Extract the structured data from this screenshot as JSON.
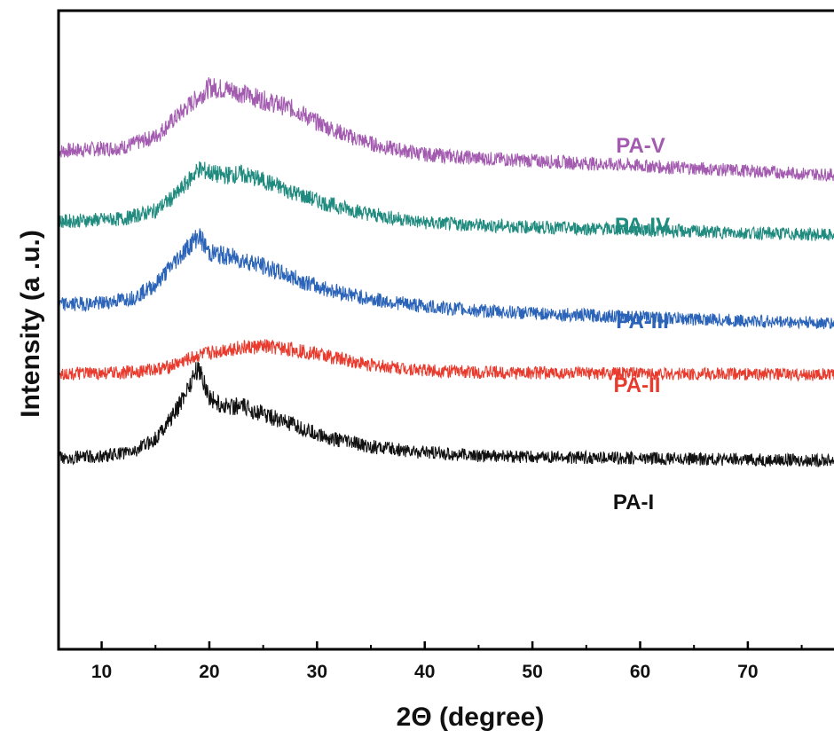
{
  "chart_data": {
    "type": "line",
    "xlabel": "2Θ (degree)",
    "ylabel": "Intensity (a .u.)",
    "xlim": [
      6,
      78
    ],
    "x_ticks": [
      10,
      20,
      30,
      40,
      50,
      60,
      70
    ],
    "y_ticks_shown": false,
    "grid": false,
    "legend": "inline labels at right",
    "series": [
      {
        "name": "PA-V",
        "color": "#a35bb0",
        "points": [
          [
            6,
            0.78
          ],
          [
            12,
            0.786
          ],
          [
            15,
            0.803
          ],
          [
            18,
            0.85
          ],
          [
            20,
            0.88
          ],
          [
            22,
            0.876
          ],
          [
            25,
            0.86
          ],
          [
            28,
            0.845
          ],
          [
            30,
            0.825
          ],
          [
            33,
            0.803
          ],
          [
            36,
            0.787
          ],
          [
            40,
            0.775
          ],
          [
            45,
            0.769
          ],
          [
            50,
            0.765
          ],
          [
            55,
            0.761
          ],
          [
            60,
            0.757
          ],
          [
            65,
            0.753
          ],
          [
            70,
            0.749
          ],
          [
            75,
            0.745
          ],
          [
            78,
            0.743
          ]
        ]
      },
      {
        "name": "PA-IV",
        "color": "#1f8a7e",
        "points": [
          [
            6,
            0.67
          ],
          [
            12,
            0.674
          ],
          [
            15,
            0.687
          ],
          [
            17,
            0.713
          ],
          [
            19,
            0.752
          ],
          [
            21,
            0.742
          ],
          [
            23,
            0.744
          ],
          [
            25,
            0.734
          ],
          [
            28,
            0.714
          ],
          [
            31,
            0.697
          ],
          [
            35,
            0.681
          ],
          [
            40,
            0.668
          ],
          [
            45,
            0.664
          ],
          [
            50,
            0.661
          ],
          [
            55,
            0.659
          ],
          [
            60,
            0.657
          ],
          [
            65,
            0.654
          ],
          [
            70,
            0.652
          ],
          [
            75,
            0.65
          ],
          [
            78,
            0.648
          ]
        ]
      },
      {
        "name": "PA-III",
        "color": "#2a63b8",
        "points": [
          [
            6,
            0.54
          ],
          [
            10,
            0.542
          ],
          [
            13,
            0.551
          ],
          [
            15,
            0.571
          ],
          [
            17,
            0.611
          ],
          [
            19,
            0.648
          ],
          [
            20,
            0.621
          ],
          [
            22,
            0.614
          ],
          [
            24,
            0.606
          ],
          [
            27,
            0.587
          ],
          [
            30,
            0.568
          ],
          [
            35,
            0.548
          ],
          [
            40,
            0.537
          ],
          [
            45,
            0.53
          ],
          [
            50,
            0.526
          ],
          [
            55,
            0.523
          ],
          [
            60,
            0.52
          ],
          [
            65,
            0.517
          ],
          [
            70,
            0.514
          ],
          [
            75,
            0.512
          ],
          [
            78,
            0.51
          ]
        ]
      },
      {
        "name": "PA-II",
        "color": "#e83b2e",
        "points": [
          [
            6,
            0.431
          ],
          [
            12,
            0.433
          ],
          [
            16,
            0.441
          ],
          [
            19,
            0.46
          ],
          [
            22,
            0.471
          ],
          [
            25,
            0.474
          ],
          [
            28,
            0.469
          ],
          [
            31,
            0.459
          ],
          [
            35,
            0.445
          ],
          [
            40,
            0.437
          ],
          [
            45,
            0.434
          ],
          [
            50,
            0.433
          ],
          [
            55,
            0.432
          ],
          [
            60,
            0.432
          ],
          [
            65,
            0.431
          ],
          [
            70,
            0.431
          ],
          [
            75,
            0.43
          ],
          [
            78,
            0.43
          ]
        ]
      },
      {
        "name": "PA-I",
        "color": "#111111",
        "points": [
          [
            6,
            0.3
          ],
          [
            10,
            0.302
          ],
          [
            13,
            0.31
          ],
          [
            15,
            0.33
          ],
          [
            17,
            0.375
          ],
          [
            18,
            0.41
          ],
          [
            19,
            0.442
          ],
          [
            20,
            0.395
          ],
          [
            21,
            0.382
          ],
          [
            23,
            0.38
          ],
          [
            25,
            0.369
          ],
          [
            28,
            0.349
          ],
          [
            31,
            0.331
          ],
          [
            35,
            0.317
          ],
          [
            40,
            0.308
          ],
          [
            45,
            0.303
          ],
          [
            50,
            0.301
          ],
          [
            55,
            0.3
          ],
          [
            60,
            0.299
          ],
          [
            65,
            0.298
          ],
          [
            70,
            0.297
          ],
          [
            75,
            0.296
          ],
          [
            78,
            0.296
          ]
        ]
      }
    ]
  }
}
